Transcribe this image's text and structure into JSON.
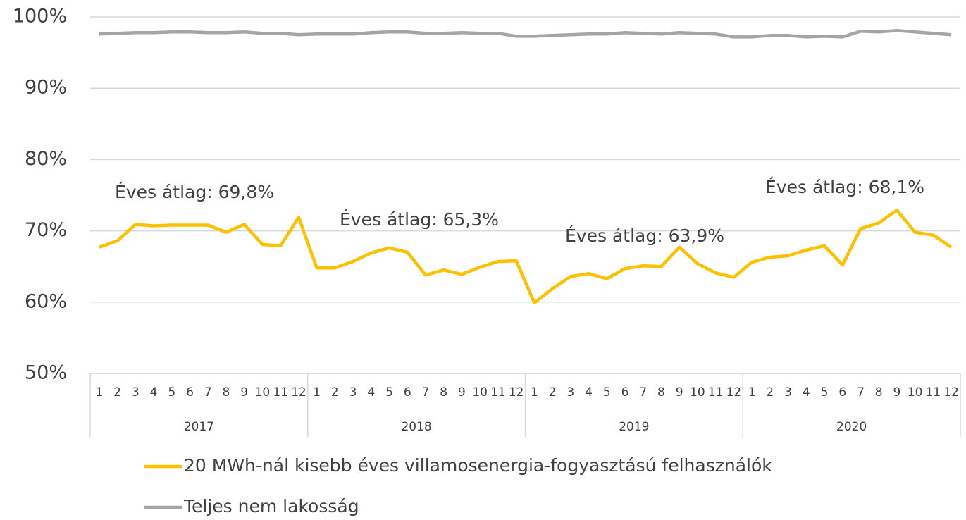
{
  "chart_data": {
    "type": "line",
    "categories": [
      "1",
      "2",
      "3",
      "4",
      "5",
      "6",
      "7",
      "8",
      "9",
      "10",
      "11",
      "12",
      "1",
      "2",
      "3",
      "4",
      "5",
      "6",
      "7",
      "8",
      "9",
      "10",
      "11",
      "12",
      "1",
      "2",
      "3",
      "4",
      "5",
      "6",
      "7",
      "8",
      "9",
      "10",
      "11",
      "12",
      "1",
      "2",
      "3",
      "4",
      "5",
      "6",
      "7",
      "8",
      "9",
      "10",
      "11",
      "12"
    ],
    "years": [
      "2017",
      "2018",
      "2019",
      "2020"
    ],
    "series": [
      {
        "name": "20 MWh-nál kisebb éves villamosenergia-fogyasztású felhasználók",
        "color": "#ffc000",
        "values": [
          67.7,
          68.6,
          70.9,
          70.7,
          70.8,
          70.8,
          70.8,
          69.8,
          70.9,
          68.1,
          67.9,
          71.9,
          64.8,
          64.8,
          65.7,
          66.9,
          67.6,
          67.0,
          63.8,
          64.5,
          63.9,
          64.9,
          65.7,
          65.8,
          59.9,
          61.9,
          63.6,
          64.0,
          63.3,
          64.7,
          65.1,
          65.0,
          67.7,
          65.4,
          64.1,
          63.5,
          65.6,
          66.3,
          66.5,
          67.3,
          67.9,
          65.2,
          70.3,
          71.1,
          72.9,
          69.8,
          69.4,
          67.7
        ]
      },
      {
        "name": "Teljes nem lakosság",
        "color": "#a5a5a5",
        "values": [
          97.6,
          97.7,
          97.8,
          97.8,
          97.9,
          97.9,
          97.8,
          97.8,
          97.9,
          97.7,
          97.7,
          97.5,
          97.6,
          97.6,
          97.6,
          97.8,
          97.9,
          97.9,
          97.7,
          97.7,
          97.8,
          97.7,
          97.7,
          97.3,
          97.3,
          97.4,
          97.5,
          97.6,
          97.6,
          97.8,
          97.7,
          97.6,
          97.8,
          97.7,
          97.6,
          97.2,
          97.2,
          97.4,
          97.4,
          97.2,
          97.3,
          97.2,
          98.0,
          97.9,
          98.1,
          97.9,
          97.7,
          97.5
        ]
      }
    ],
    "annotations": [
      "Éves átlag: 69,8%",
      "Éves átlag: 65,3%",
      "Éves átlag: 63,9%",
      "Éves átlag: 68,1%"
    ],
    "ylim": [
      50,
      100
    ],
    "yticks": [
      {
        "value": 50,
        "label": "50%"
      },
      {
        "value": 60,
        "label": "60%"
      },
      {
        "value": 70,
        "label": "70%"
      },
      {
        "value": 80,
        "label": "80%"
      },
      {
        "value": 90,
        "label": "90%"
      },
      {
        "value": 100,
        "label": "100%"
      }
    ],
    "grid": true
  }
}
